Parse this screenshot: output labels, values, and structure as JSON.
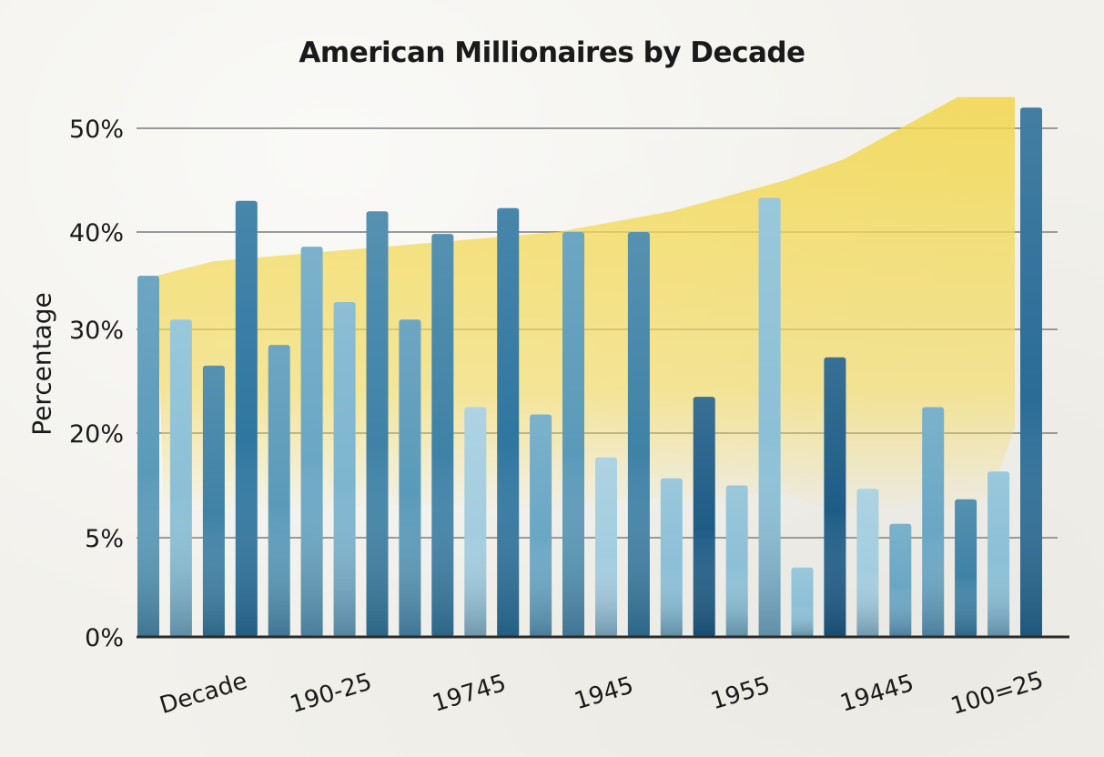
{
  "chart_data": {
    "type": "bar",
    "title": "American Millionaires by Decade",
    "ylabel": "Percentage",
    "xlabel": "",
    "y_tick_labels": [
      "0%",
      "5%",
      "20%",
      "30%",
      "40%",
      "50%"
    ],
    "x_tick_labels": [
      "Decade",
      "190-25",
      "19745",
      "1945",
      "1955",
      "19445",
      "100=25"
    ],
    "grid": true,
    "series": [
      {
        "kind": "bar",
        "values": [
          35.5,
          31,
          26.5,
          43,
          28.5,
          38.5,
          32.8,
          42,
          31,
          39.8,
          22.5,
          42.3,
          21.8,
          40,
          16.5,
          40,
          13.5,
          23.5,
          12.5,
          43.3,
          3.5,
          27.3,
          12,
          7,
          22.5,
          10.5,
          14.5,
          52
        ],
        "colors": [
          "#5a9ab9",
          "#8cc0d6",
          "#3f82a6",
          "#2f76a0",
          "#5a9ab9",
          "#6aa7c4",
          "#7db5cf",
          "#3f82a6",
          "#5a9ab9",
          "#3f82a6",
          "#a3cddf",
          "#2f76a0",
          "#6aa7c4",
          "#5a9ab9",
          "#a3cddf",
          "#3f82a6",
          "#8cc0d6",
          "#1e5c86",
          "#8cc0d6",
          "#8cc0d6",
          "#8cc0d6",
          "#1e5c86",
          "#a3cddf",
          "#6aa7c4",
          "#6aa7c4",
          "#3f82a6",
          "#8cc0d6",
          "#2a6c96"
        ]
      },
      {
        "kind": "area",
        "color": "#f2d64a",
        "values": [
          35.5,
          37,
          37.5,
          38,
          38.5,
          39,
          39.5,
          40,
          41,
          42,
          43.5,
          45,
          47,
          50,
          53,
          53
        ]
      }
    ]
  }
}
